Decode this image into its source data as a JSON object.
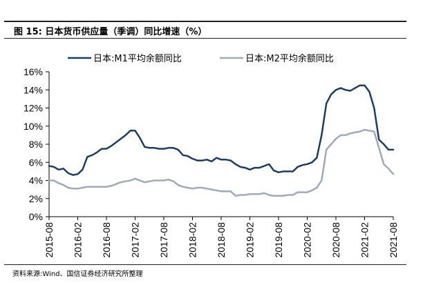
{
  "header": {
    "title": "图 15:  日本货币供应量（季调）同比增速（%）"
  },
  "footer": {
    "source": "资料来源:Wind、国信证券经济研究所整理"
  },
  "colors": {
    "m1": "#1c3c63",
    "m2": "#9eaab6",
    "axis": "#000000"
  },
  "chart_data": {
    "type": "line",
    "title": "",
    "xlabel": "",
    "ylabel": "",
    "ylim": [
      0,
      16
    ],
    "y_ticks": [
      "0%",
      "2%",
      "4%",
      "6%",
      "8%",
      "10%",
      "12%",
      "14%",
      "16%"
    ],
    "x_tick_labels": [
      "2015-08",
      "2016-02",
      "2016-08",
      "2017-02",
      "2017-08",
      "2018-02",
      "2018-08",
      "2019-02",
      "2019-08",
      "2020-02",
      "2020-08",
      "2021-02",
      "2021-08"
    ],
    "grid": false,
    "legend_position": "top",
    "x": [
      "2015-08",
      "2015-09",
      "2015-10",
      "2015-11",
      "2015-12",
      "2016-01",
      "2016-02",
      "2016-03",
      "2016-04",
      "2016-05",
      "2016-06",
      "2016-07",
      "2016-08",
      "2016-09",
      "2016-10",
      "2016-11",
      "2016-12",
      "2017-01",
      "2017-02",
      "2017-03",
      "2017-04",
      "2017-05",
      "2017-06",
      "2017-07",
      "2017-08",
      "2017-09",
      "2017-10",
      "2017-11",
      "2017-12",
      "2018-01",
      "2018-02",
      "2018-03",
      "2018-04",
      "2018-05",
      "2018-06",
      "2018-07",
      "2018-08",
      "2018-09",
      "2018-10",
      "2018-11",
      "2018-12",
      "2019-01",
      "2019-02",
      "2019-03",
      "2019-04",
      "2019-05",
      "2019-06",
      "2019-07",
      "2019-08",
      "2019-09",
      "2019-10",
      "2019-11",
      "2019-12",
      "2020-01",
      "2020-02",
      "2020-03",
      "2020-04",
      "2020-05",
      "2020-06",
      "2020-07",
      "2020-08",
      "2020-09",
      "2020-10",
      "2020-11",
      "2020-12",
      "2021-01",
      "2021-02",
      "2021-03",
      "2021-04",
      "2021-05",
      "2021-06",
      "2021-07",
      "2021-08"
    ],
    "series": [
      {
        "name": "日本:M1平均余额同比",
        "values": [
          5.6,
          5.5,
          5.2,
          5.3,
          4.8,
          4.6,
          4.7,
          5.2,
          6.6,
          6.8,
          7.1,
          7.5,
          7.5,
          7.8,
          8.2,
          8.6,
          9.0,
          9.5,
          9.5,
          8.7,
          7.7,
          7.6,
          7.6,
          7.5,
          7.5,
          7.6,
          7.6,
          7.4,
          6.8,
          6.7,
          6.4,
          6.2,
          6.2,
          6.3,
          6.1,
          6.5,
          6.3,
          6.3,
          6.2,
          5.8,
          5.5,
          5.4,
          5.2,
          5.4,
          5.4,
          5.6,
          5.8,
          5.1,
          4.9,
          5.0,
          5.0,
          5.0,
          5.5,
          5.7,
          5.8,
          6.0,
          6.5,
          9.0,
          12.5,
          13.5,
          14.0,
          14.2,
          14.0,
          13.9,
          14.2,
          14.5,
          14.5,
          13.8,
          12.0,
          8.5,
          8.0,
          7.4,
          7.4
        ]
      },
      {
        "name": "日本:M2平均余额同比",
        "values": [
          4.0,
          4.0,
          3.7,
          3.5,
          3.2,
          3.1,
          3.1,
          3.2,
          3.3,
          3.3,
          3.3,
          3.3,
          3.3,
          3.4,
          3.6,
          3.8,
          3.9,
          4.0,
          4.2,
          4.0,
          3.8,
          3.9,
          4.0,
          4.0,
          4.0,
          4.1,
          3.9,
          3.5,
          3.3,
          3.2,
          3.1,
          3.2,
          3.2,
          3.1,
          3.0,
          2.9,
          2.8,
          2.8,
          2.8,
          2.3,
          2.4,
          2.4,
          2.5,
          2.5,
          2.5,
          2.6,
          2.4,
          2.3,
          2.3,
          2.3,
          2.4,
          2.4,
          2.7,
          2.7,
          2.7,
          2.9,
          3.2,
          4.0,
          7.4,
          8.0,
          8.6,
          9.0,
          9.0,
          9.2,
          9.3,
          9.4,
          9.6,
          9.5,
          9.4,
          7.6,
          5.8,
          5.3,
          4.7
        ]
      }
    ]
  }
}
